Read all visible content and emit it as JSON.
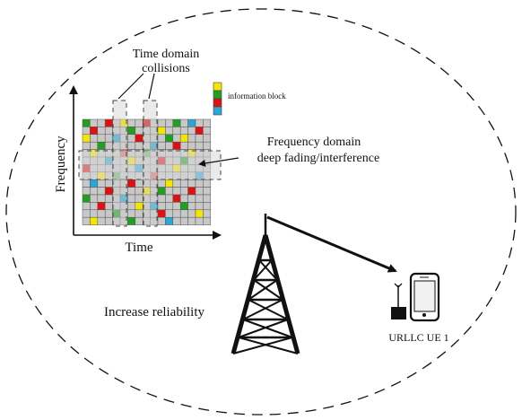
{
  "labels": {
    "collisions_line1": "Time domain",
    "collisions_line2": "collisions",
    "info_block": "information block",
    "freq_line1": "Frequency domain",
    "freq_line2": "deep fading/interference",
    "y_axis": "Frequency",
    "x_axis": "Time",
    "reliability": "Increase reliability",
    "ue": "URLLC UE 1"
  },
  "legend_colors": [
    "#f5e600",
    "#20a020",
    "#e01010",
    "#2aa7d6"
  ],
  "colors": {
    "yellow": "#f5e600",
    "green": "#20a020",
    "red": "#e01010",
    "blue": "#2aa7d6",
    "cell": "#c8c8c8"
  }
}
